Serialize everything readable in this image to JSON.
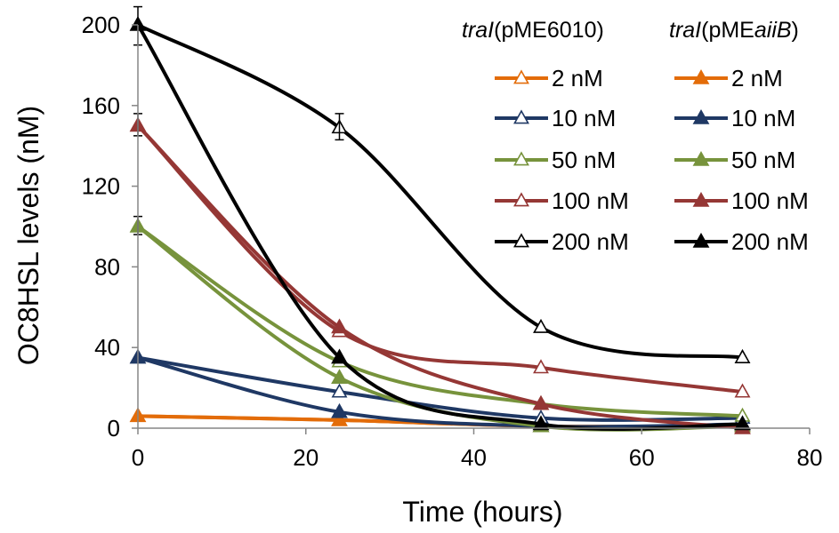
{
  "chart_data": {
    "type": "line",
    "xlabel": "Time (hours)",
    "ylabel": "OC8HSL levels (nM)",
    "xlim": [
      0,
      80
    ],
    "ylim": [
      0,
      200
    ],
    "xticks": [
      "0",
      "20",
      "40",
      "60",
      "80"
    ],
    "yticks": [
      "0",
      "40",
      "80",
      "120",
      "160",
      "200"
    ],
    "x": [
      0,
      24,
      48,
      72
    ],
    "grid": false,
    "legend_placement": "top-right",
    "legend_groups": [
      {
        "title_italic": "traI",
        "title_rest": "(pME6010)",
        "marker": "open-triangle"
      },
      {
        "title_italic": "traI",
        "title_rest": "(pME",
        "title_italic2": "aiiB",
        "title_end": ")",
        "marker": "filled-triangle"
      }
    ],
    "series": [
      {
        "name": "2 nM",
        "group": "traI(pME6010)",
        "marker": "open-triangle",
        "color": "#E36C09",
        "values": [
          6,
          4,
          1,
          1
        ]
      },
      {
        "name": "10 nM",
        "group": "traI(pME6010)",
        "marker": "open-triangle",
        "color": "#1F3864",
        "values": [
          35,
          18,
          5,
          5
        ]
      },
      {
        "name": "50 nM",
        "group": "traI(pME6010)",
        "marker": "open-triangle",
        "color": "#77933C",
        "values": [
          100,
          33,
          12,
          6
        ]
      },
      {
        "name": "100 nM",
        "group": "traI(pME6010)",
        "marker": "open-triangle",
        "color": "#953735",
        "values": [
          150,
          48,
          30,
          18
        ]
      },
      {
        "name": "200 nM",
        "group": "traI(pME6010)",
        "marker": "open-triangle",
        "color": "#000000",
        "values": [
          200,
          149,
          50,
          35
        ]
      },
      {
        "name": "2 nM",
        "group": "traI(pMEaiiB)",
        "marker": "filled-triangle",
        "color": "#E36C09",
        "values": [
          6,
          4,
          1,
          1
        ]
      },
      {
        "name": "10 nM",
        "group": "traI(pMEaiiB)",
        "marker": "filled-triangle",
        "color": "#1F3864",
        "values": [
          35,
          8,
          1,
          2
        ]
      },
      {
        "name": "50 nM",
        "group": "traI(pMEaiiB)",
        "marker": "filled-triangle",
        "color": "#77933C",
        "values": [
          100,
          25,
          1,
          1
        ]
      },
      {
        "name": "100 nM",
        "group": "traI(pMEaiiB)",
        "marker": "filled-triangle",
        "color": "#953735",
        "values": [
          150,
          50,
          12,
          0
        ]
      },
      {
        "name": "200 nM",
        "group": "traI(pMEaiiB)",
        "marker": "filled-triangle",
        "color": "#000000",
        "values": [
          200,
          35,
          2,
          2
        ]
      }
    ],
    "error_bars": [
      {
        "series_index": 4,
        "x": 0,
        "low": 190,
        "high": 209
      },
      {
        "series_index": 3,
        "x": 0,
        "low": 145,
        "high": 156
      },
      {
        "series_index": 2,
        "x": 0,
        "low": 96,
        "high": 105
      },
      {
        "series_index": 4,
        "x": 24,
        "low": 143,
        "high": 156
      }
    ]
  }
}
